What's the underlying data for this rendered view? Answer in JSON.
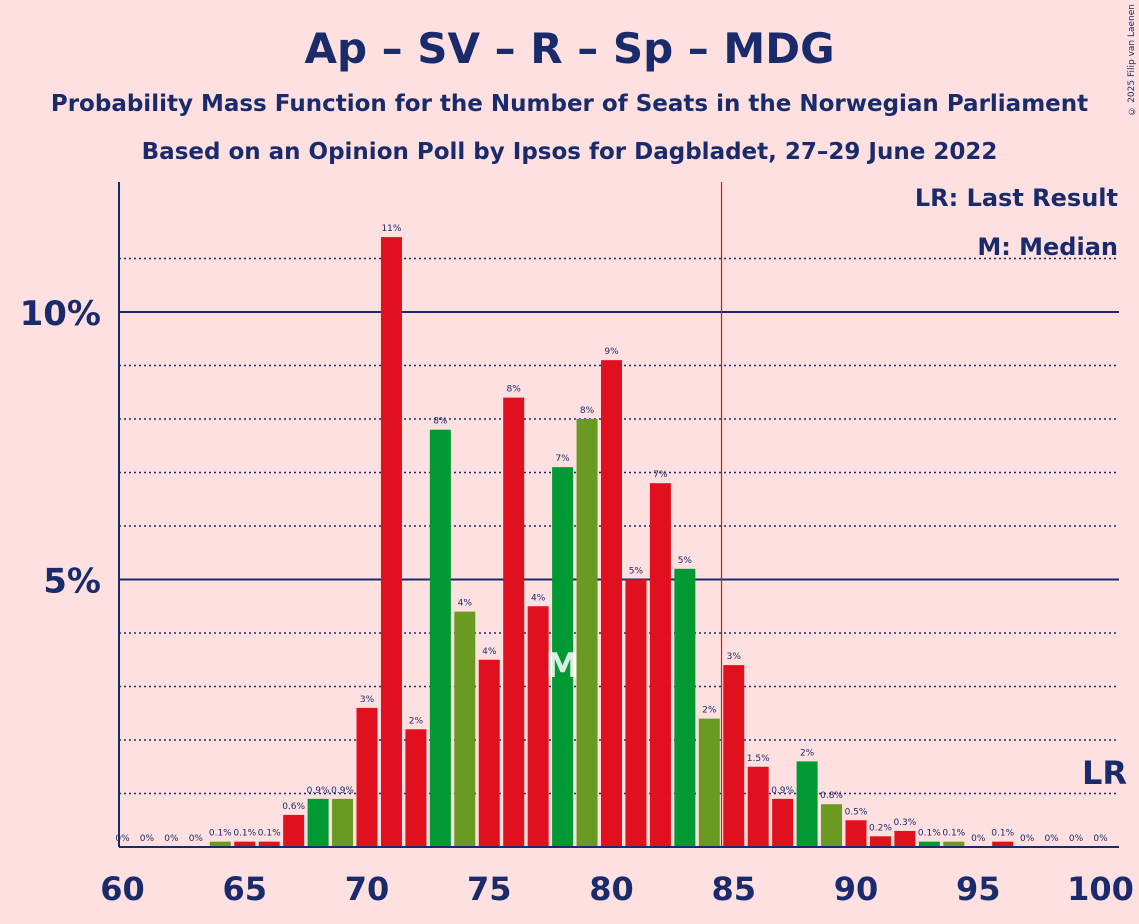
{
  "header": {
    "title": "Ap – SV – R – Sp – MDG",
    "subtitle1": "Probability Mass Function for the Number of Seats in the Norwegian Parliament",
    "subtitle2": "Based on an Opinion Poll by Ipsos for Dagbladet, 27–29 June 2022",
    "copyright": "© 2025 Filip van Laenen"
  },
  "legend": {
    "lr": "LR: Last Result",
    "m": "M: Median",
    "lr_mark": "LR",
    "median_mark": "M"
  },
  "colors": {
    "background": "#ffe0e0",
    "red": "#e0101f",
    "green": "#009933",
    "olive": "#6b9a22",
    "axis": "#1a2b6b",
    "last_result_line": "#e0101f"
  },
  "chart_data": {
    "type": "bar",
    "x": [
      60,
      61,
      62,
      63,
      64,
      65,
      66,
      67,
      68,
      69,
      70,
      71,
      72,
      73,
      74,
      75,
      76,
      77,
      78,
      79,
      80,
      81,
      82,
      83,
      84,
      85,
      86,
      87,
      88,
      89,
      90,
      91,
      92,
      93,
      94,
      95,
      96,
      97,
      98,
      99,
      100
    ],
    "values": [
      0,
      0,
      0,
      0,
      0.1,
      0.1,
      0.1,
      0.6,
      0.9,
      0.9,
      2.6,
      11.4,
      2.2,
      7.8,
      4.4,
      3.5,
      8.4,
      4.5,
      7.1,
      8,
      9.1,
      5,
      6.8,
      5.2,
      2.4,
      3.4,
      1.5,
      0.9,
      1.6,
      0.8,
      0.5,
      0.2,
      0.3,
      0.1,
      0.1,
      0,
      0.1,
      0,
      0,
      0,
      0
    ],
    "labels": [
      "0%",
      "0%",
      "0%",
      "0%",
      "0.1%",
      "0.1%",
      "0.1%",
      "0.6%",
      "0.9%",
      "0.9%",
      "3%",
      "11%",
      "2%",
      "8%",
      "4%",
      "4%",
      "8%",
      "4%",
      "7%",
      "8%",
      "9%",
      "5%",
      "7%",
      "5%",
      "2%",
      "3%",
      "1.5%",
      "0.9%",
      "2%",
      "0.8%",
      "0.5%",
      "0.2%",
      "0.3%",
      "0.1%",
      "0.1%",
      "0%",
      "0.1%",
      "0%",
      "0%",
      "0%",
      "0%"
    ],
    "colors": [
      "red",
      "red",
      "red",
      "red",
      "olive",
      "red",
      "red",
      "red",
      "green",
      "olive",
      "red",
      "red",
      "red",
      "green",
      "olive",
      "red",
      "red",
      "red",
      "green",
      "olive",
      "red",
      "red",
      "red",
      "green",
      "olive",
      "red",
      "red",
      "red",
      "green",
      "olive",
      "red",
      "red",
      "red",
      "green",
      "olive",
      "red",
      "red",
      "red",
      "green",
      "olive",
      "red"
    ],
    "xticks": [
      60,
      65,
      70,
      75,
      80,
      85,
      90,
      95,
      100
    ],
    "xtick_labels": [
      "60",
      "65",
      "70",
      "75",
      "80",
      "85",
      "90",
      "95",
      "100"
    ],
    "yticks_major": [
      5,
      10
    ],
    "ytick_labels": [
      "5%",
      "10%"
    ],
    "ygrid_minor": [
      1,
      2,
      3,
      4,
      6,
      7,
      8,
      9,
      11
    ],
    "ylim": [
      0,
      12.4
    ],
    "median": 78,
    "last_result": 84.5,
    "xlabel": "",
    "ylabel": ""
  }
}
